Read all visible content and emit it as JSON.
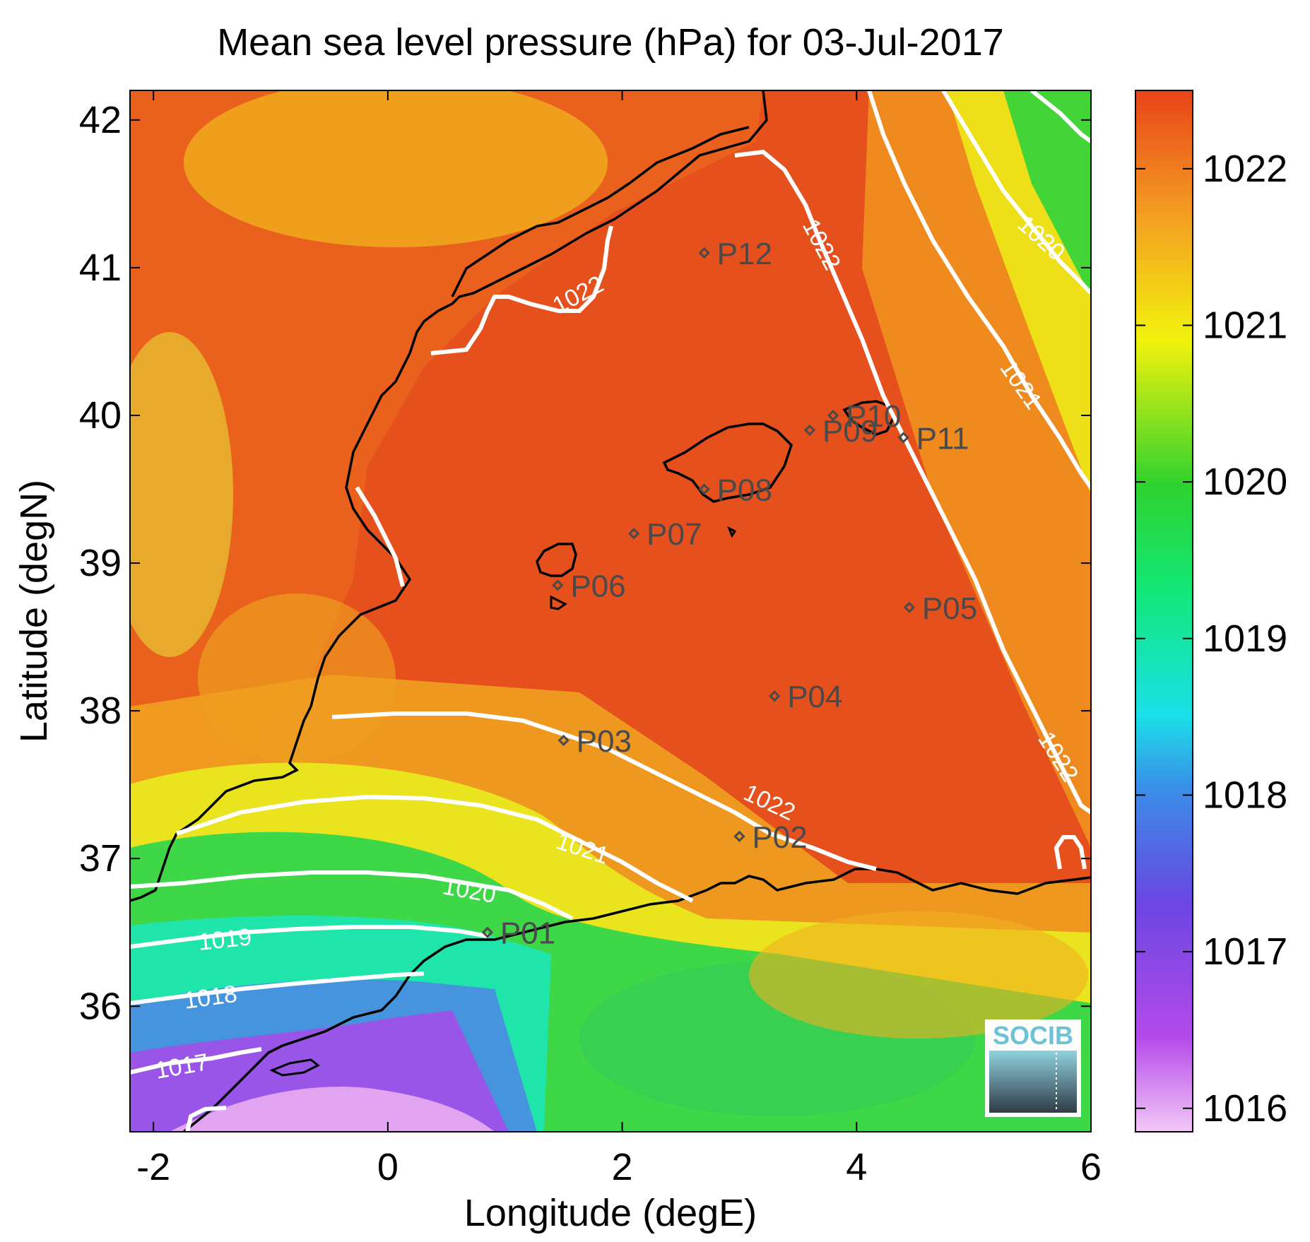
{
  "map": {
    "title": "Mean sea level pressure (hPa) for 03-Jul-2017",
    "xlabel": "Longitude (degE)",
    "ylabel": "Latitude (degN)",
    "x_ticks": [
      -2,
      0,
      2,
      4,
      6
    ],
    "y_ticks": [
      36,
      37,
      38,
      39,
      40,
      41,
      42
    ],
    "xlim": [
      -2.2,
      6.0
    ],
    "ylim": [
      35.15,
      42.2
    ],
    "colorbar": {
      "ticks": [
        1016,
        1017,
        1018,
        1019,
        1020,
        1021,
        1022
      ],
      "range": [
        1015.85,
        1022.5
      ],
      "colors": [
        "#f2c8f5",
        "#b54aea",
        "#6a46e2",
        "#3a8ee8",
        "#19e0e8",
        "#12e878",
        "#2ed22e",
        "#f2f20c",
        "#f49e22",
        "#e84418"
      ]
    },
    "contour_color": "#ffffff",
    "coast_color": "#000000",
    "station_color": "#4a4a4a",
    "logo_text": "SOCIB"
  },
  "chart_data": {
    "type": "heatmap",
    "variable": "Mean sea level pressure (hPa)",
    "date": "03-Jul-2017",
    "contour_levels": [
      1017,
      1018,
      1019,
      1020,
      1021,
      1022
    ],
    "stations": [
      {
        "name": "P01",
        "lon": 0.85,
        "lat": 36.5
      },
      {
        "name": "P02",
        "lon": 3.0,
        "lat": 37.15
      },
      {
        "name": "P03",
        "lon": 1.5,
        "lat": 37.8
      },
      {
        "name": "P04",
        "lon": 3.3,
        "lat": 38.1
      },
      {
        "name": "P05",
        "lon": 4.45,
        "lat": 38.7
      },
      {
        "name": "P06",
        "lon": 1.45,
        "lat": 38.85
      },
      {
        "name": "P07",
        "lon": 2.1,
        "lat": 39.2
      },
      {
        "name": "P08",
        "lon": 2.7,
        "lat": 39.5
      },
      {
        "name": "P09",
        "lon": 3.6,
        "lat": 39.9
      },
      {
        "name": "P10",
        "lon": 3.8,
        "lat": 40.0
      },
      {
        "name": "P11",
        "lon": 4.4,
        "lat": 39.85
      },
      {
        "name": "P12",
        "lon": 2.7,
        "lat": 41.1
      }
    ]
  }
}
